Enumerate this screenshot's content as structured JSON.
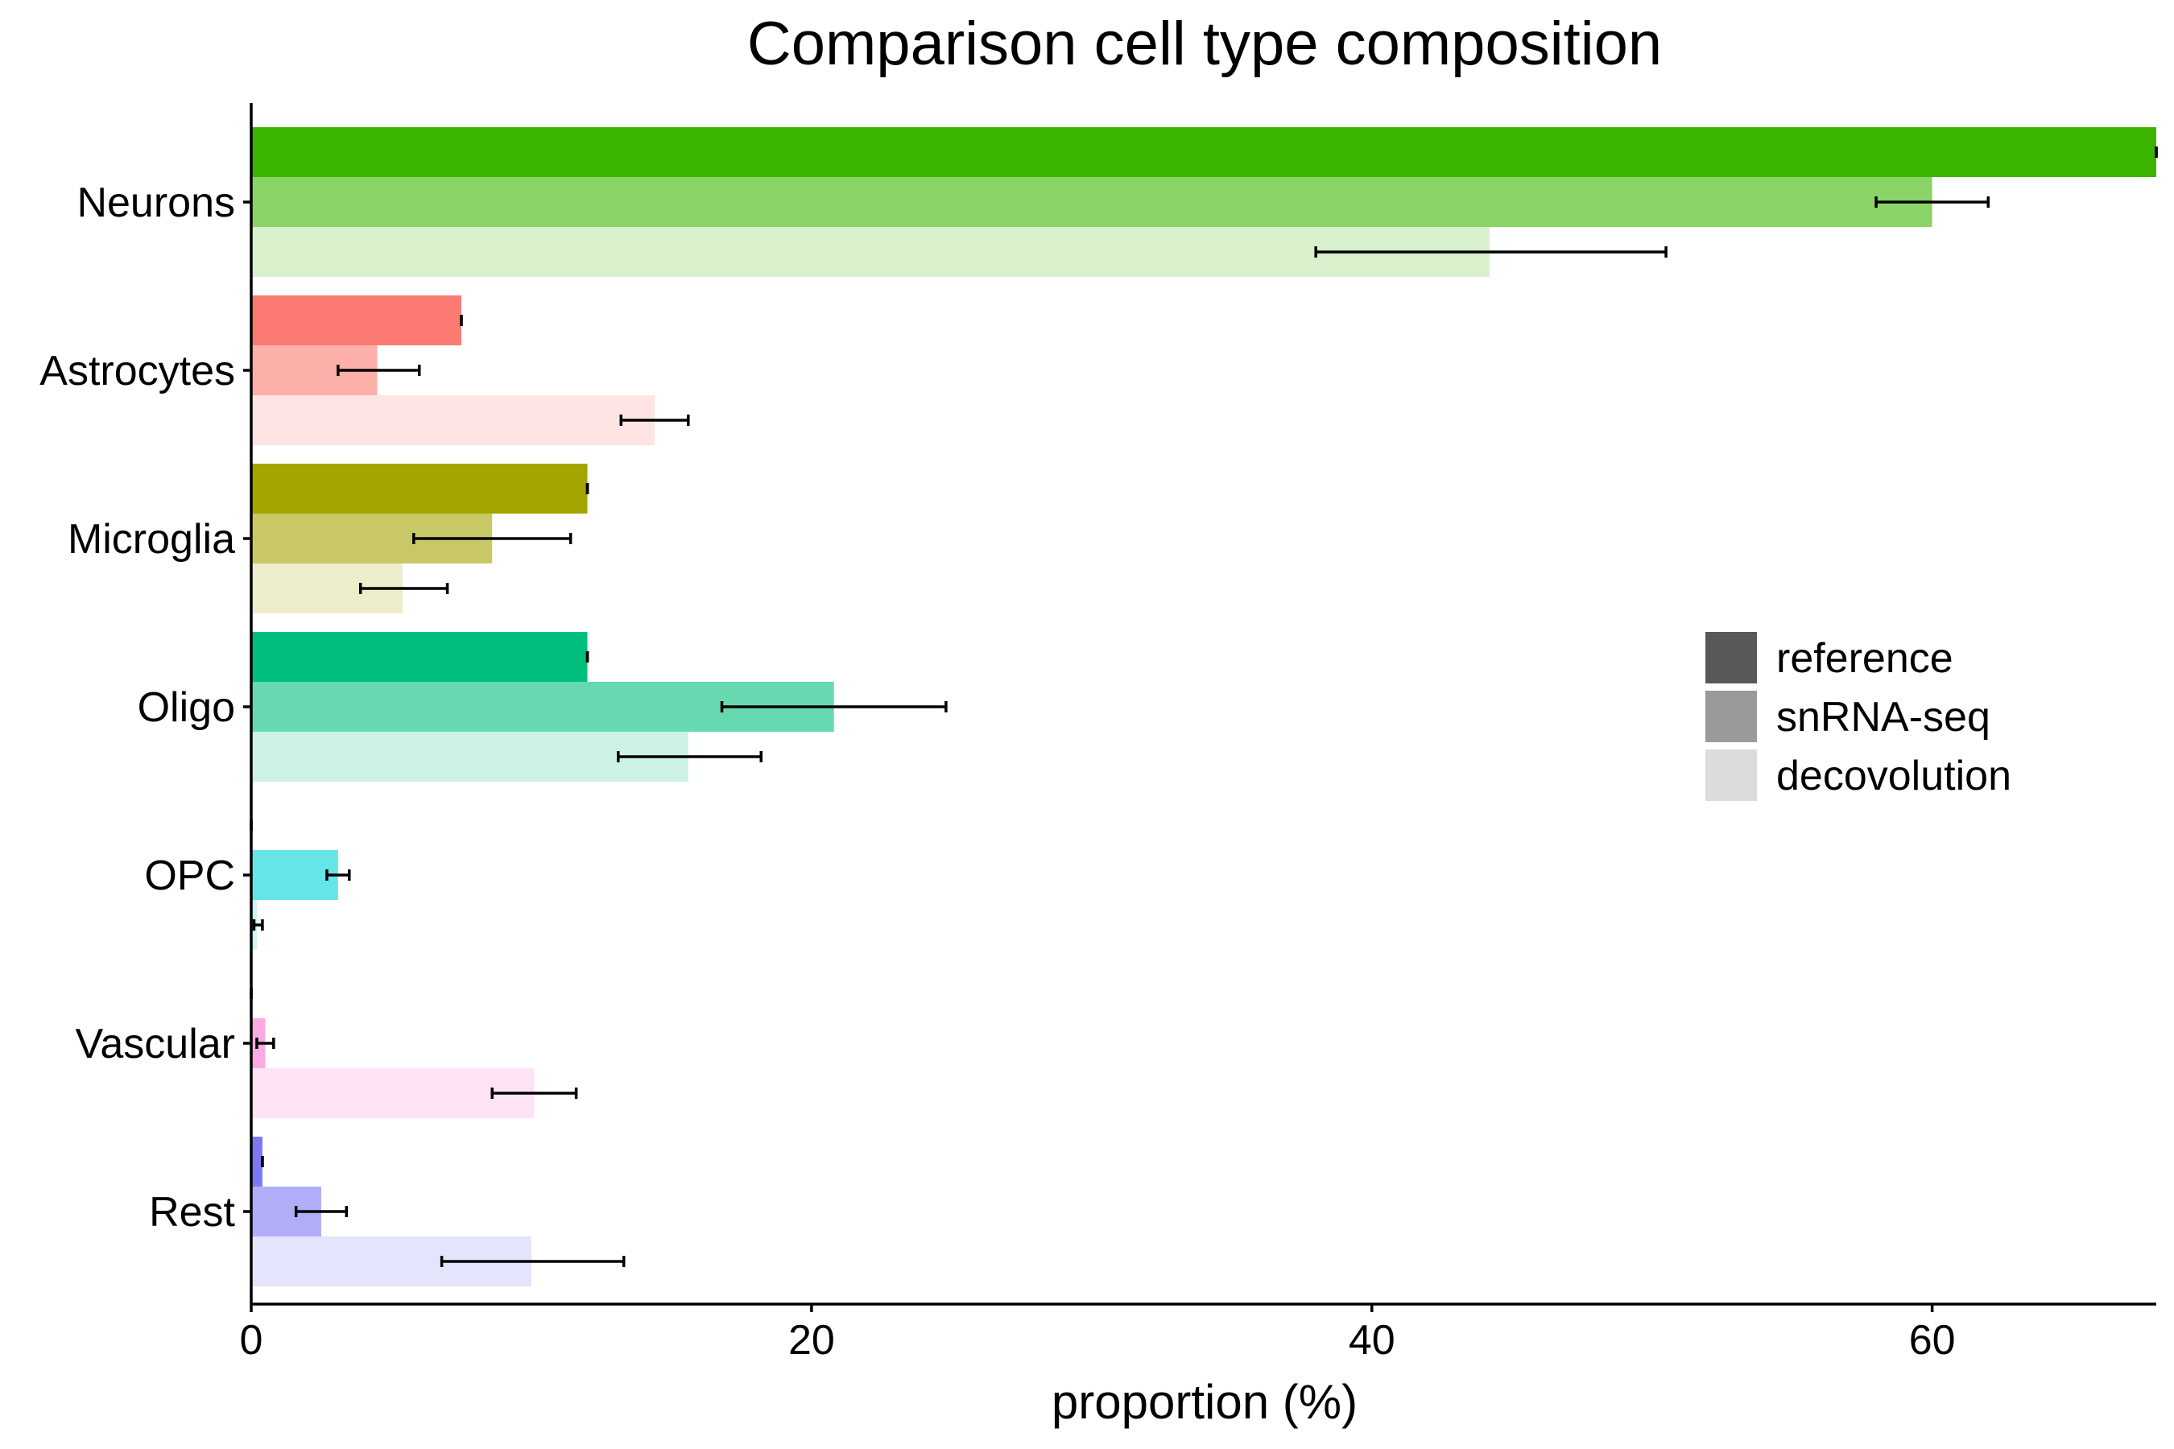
{
  "chart_data": {
    "type": "bar",
    "orientation": "horizontal",
    "title": "Comparison cell type composition",
    "xlabel": "proportion (%)",
    "ylabel": "",
    "xlim": [
      0,
      68
    ],
    "xticks": [
      0,
      20,
      40,
      60
    ],
    "grid": false,
    "legend_position": "right",
    "categories": [
      "Neurons",
      "Astrocytes",
      "Microglia",
      "Oligo",
      "OPC",
      "Vascular",
      "Rest"
    ],
    "category_colors": [
      "#3cb500",
      "#fb7a72",
      "#a3a500",
      "#00bf7d",
      "#00d4d8",
      "#f872cf",
      "#7d78f5"
    ],
    "series_shades": {
      "reference": "#595959",
      "snRNA-seq": "#9a9a9a",
      "decovolution": "#dcdcdc"
    },
    "series": [
      {
        "name": "reference",
        "alpha": 1.0,
        "values": [
          68,
          7.5,
          12,
          12,
          0,
          0,
          0.4
        ],
        "errors": [
          [
            68,
            68
          ],
          [
            7.5,
            7.5
          ],
          [
            12,
            12
          ],
          [
            12,
            12
          ],
          [
            0,
            0
          ],
          [
            0,
            0
          ],
          [
            0.4,
            0.4
          ]
        ]
      },
      {
        "name": "snRNA-seq",
        "alpha": 0.6,
        "values": [
          60,
          4.5,
          8.6,
          20.8,
          3.1,
          0.5,
          2.5
        ],
        "errors": [
          [
            58,
            62
          ],
          [
            3.1,
            6.0
          ],
          [
            5.8,
            11.4
          ],
          [
            16.8,
            24.8
          ],
          [
            2.7,
            3.5
          ],
          [
            0.2,
            0.8
          ],
          [
            1.6,
            3.4
          ]
        ]
      },
      {
        "name": "decovolution",
        "alpha": 0.2,
        "values": [
          44.2,
          14.4,
          5.4,
          15.6,
          0.2,
          10.1,
          10.0
        ],
        "errors": [
          [
            38,
            50.5
          ],
          [
            13.2,
            15.6
          ],
          [
            3.9,
            7.0
          ],
          [
            13.1,
            18.2
          ],
          [
            0.1,
            0.4
          ],
          [
            8.6,
            11.6
          ],
          [
            6.8,
            13.3
          ]
        ]
      }
    ]
  }
}
